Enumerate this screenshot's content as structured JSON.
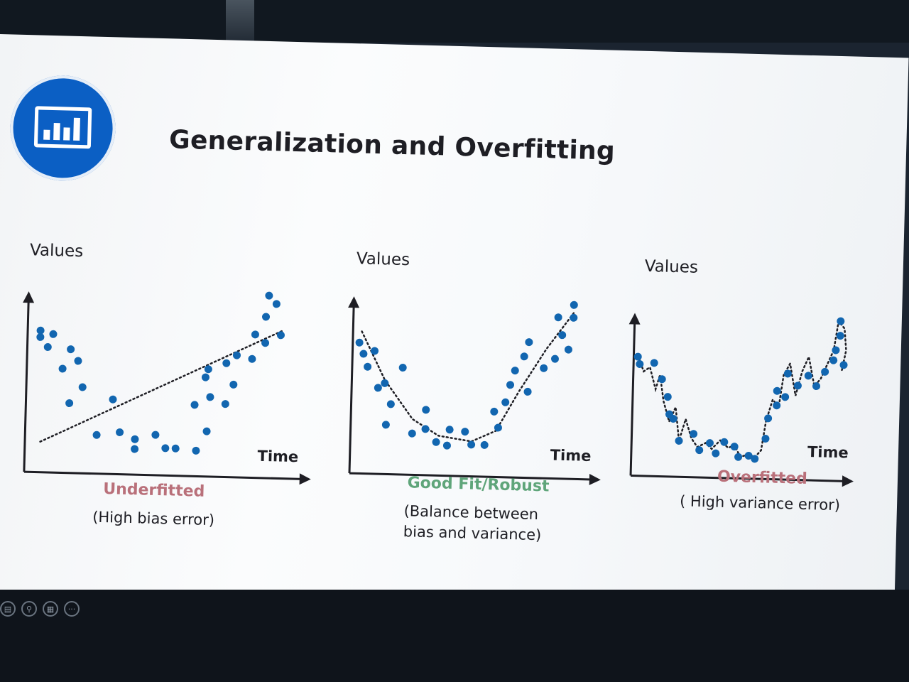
{
  "slide": {
    "title": "Generalization and Overfitting",
    "logo_icon": "bar-chart-icon",
    "accent_color": "#0b5fc4"
  },
  "panels": [
    {
      "ylabel": "Values",
      "xlabel": "Time",
      "status": "Underfitted",
      "status_color": "#b9707a",
      "desc_lines": [
        "(High bias error)"
      ]
    },
    {
      "ylabel": "Values",
      "xlabel": "Time",
      "status": "Good Fit/Robust",
      "status_color": "#5fa57a",
      "desc_lines": [
        "(Balance between",
        "bias and variance)"
      ]
    },
    {
      "ylabel": "Values",
      "xlabel": "Time",
      "status": "Overfitted",
      "status_color": "#b9707a",
      "desc_lines": [
        "( High variance error)"
      ]
    }
  ],
  "chart_data": [
    {
      "type": "scatter",
      "fit": "linear",
      "point_color": "#1266b0",
      "points": [
        [
          0.05,
          0.78
        ],
        [
          0.05,
          0.74
        ],
        [
          0.1,
          0.76
        ],
        [
          0.08,
          0.68
        ],
        [
          0.17,
          0.67
        ],
        [
          0.2,
          0.6
        ],
        [
          0.14,
          0.55
        ],
        [
          0.22,
          0.44
        ],
        [
          0.17,
          0.34
        ],
        [
          0.34,
          0.37
        ],
        [
          0.28,
          0.15
        ],
        [
          0.37,
          0.17
        ],
        [
          0.43,
          0.13
        ],
        [
          0.51,
          0.16
        ],
        [
          0.55,
          0.08
        ],
        [
          0.43,
          0.07
        ],
        [
          0.59,
          0.08
        ],
        [
          0.67,
          0.07
        ],
        [
          0.71,
          0.19
        ],
        [
          0.66,
          0.35
        ],
        [
          0.72,
          0.4
        ],
        [
          0.7,
          0.52
        ],
        [
          0.78,
          0.36
        ],
        [
          0.81,
          0.48
        ],
        [
          0.71,
          0.57
        ],
        [
          0.78,
          0.61
        ],
        [
          0.82,
          0.66
        ],
        [
          0.88,
          0.64
        ],
        [
          0.89,
          0.79
        ],
        [
          0.93,
          0.74
        ],
        [
          0.93,
          0.9
        ],
        [
          0.97,
          0.98
        ],
        [
          0.94,
          1.03
        ],
        [
          0.99,
          0.79
        ]
      ],
      "fit_line": [
        [
          0.06,
          0.1
        ],
        [
          1.0,
          0.82
        ]
      ]
    },
    {
      "type": "scatter",
      "fit": "quadratic",
      "point_color": "#1266b0",
      "points": [
        [
          0.03,
          0.73
        ],
        [
          0.05,
          0.66
        ],
        [
          0.07,
          0.58
        ],
        [
          0.1,
          0.68
        ],
        [
          0.12,
          0.45
        ],
        [
          0.15,
          0.48
        ],
        [
          0.18,
          0.35
        ],
        [
          0.23,
          0.58
        ],
        [
          0.16,
          0.22
        ],
        [
          0.28,
          0.17
        ],
        [
          0.34,
          0.32
        ],
        [
          0.34,
          0.2
        ],
        [
          0.39,
          0.12
        ],
        [
          0.44,
          0.1
        ],
        [
          0.45,
          0.2
        ],
        [
          0.52,
          0.19
        ],
        [
          0.55,
          0.11
        ],
        [
          0.61,
          0.11
        ],
        [
          0.67,
          0.22
        ],
        [
          0.65,
          0.32
        ],
        [
          0.7,
          0.38
        ],
        [
          0.72,
          0.49
        ],
        [
          0.74,
          0.58
        ],
        [
          0.78,
          0.67
        ],
        [
          0.8,
          0.76
        ],
        [
          0.8,
          0.45
        ],
        [
          0.87,
          0.6
        ],
        [
          0.92,
          0.66
        ],
        [
          0.95,
          0.81
        ],
        [
          0.98,
          0.72
        ],
        [
          0.93,
          0.92
        ],
        [
          1.0,
          1.0
        ],
        [
          1.0,
          0.92
        ]
      ],
      "fit_curve": [
        [
          0.04,
          0.8
        ],
        [
          0.15,
          0.5
        ],
        [
          0.28,
          0.26
        ],
        [
          0.4,
          0.16
        ],
        [
          0.55,
          0.13
        ],
        [
          0.66,
          0.2
        ],
        [
          0.76,
          0.45
        ],
        [
          0.88,
          0.72
        ],
        [
          1.0,
          0.95
        ]
      ]
    },
    {
      "type": "scatter",
      "fit": "wiggly",
      "point_color": "#1266b0",
      "points": [
        [
          0.02,
          0.72
        ],
        [
          0.03,
          0.67
        ],
        [
          0.1,
          0.68
        ],
        [
          0.14,
          0.57
        ],
        [
          0.17,
          0.45
        ],
        [
          0.18,
          0.33
        ],
        [
          0.2,
          0.3
        ],
        [
          0.23,
          0.15
        ],
        [
          0.3,
          0.2
        ],
        [
          0.33,
          0.09
        ],
        [
          0.38,
          0.14
        ],
        [
          0.41,
          0.07
        ],
        [
          0.45,
          0.15
        ],
        [
          0.5,
          0.12
        ],
        [
          0.52,
          0.05
        ],
        [
          0.57,
          0.06
        ],
        [
          0.6,
          0.04
        ],
        [
          0.65,
          0.18
        ],
        [
          0.66,
          0.32
        ],
        [
          0.7,
          0.41
        ],
        [
          0.7,
          0.51
        ],
        [
          0.74,
          0.47
        ],
        [
          0.75,
          0.63
        ],
        [
          0.8,
          0.55
        ],
        [
          0.85,
          0.62
        ],
        [
          0.89,
          0.55
        ],
        [
          0.93,
          0.65
        ],
        [
          0.97,
          0.73
        ],
        [
          0.98,
          0.8
        ],
        [
          1.0,
          0.9
        ],
        [
          1.0,
          1.0
        ],
        [
          1.02,
          0.7
        ]
      ],
      "fit_curve": [
        [
          0.02,
          0.73
        ],
        [
          0.05,
          0.62
        ],
        [
          0.08,
          0.65
        ],
        [
          0.11,
          0.5
        ],
        [
          0.13,
          0.6
        ],
        [
          0.15,
          0.42
        ],
        [
          0.18,
          0.28
        ],
        [
          0.21,
          0.38
        ],
        [
          0.23,
          0.15
        ],
        [
          0.26,
          0.3
        ],
        [
          0.29,
          0.17
        ],
        [
          0.32,
          0.11
        ],
        [
          0.36,
          0.14
        ],
        [
          0.39,
          0.1
        ],
        [
          0.43,
          0.16
        ],
        [
          0.47,
          0.11
        ],
        [
          0.5,
          0.13
        ],
        [
          0.53,
          0.05
        ],
        [
          0.57,
          0.07
        ],
        [
          0.6,
          0.05
        ],
        [
          0.63,
          0.1
        ],
        [
          0.65,
          0.3
        ],
        [
          0.68,
          0.45
        ],
        [
          0.71,
          0.4
        ],
        [
          0.73,
          0.62
        ],
        [
          0.76,
          0.7
        ],
        [
          0.79,
          0.48
        ],
        [
          0.82,
          0.65
        ],
        [
          0.85,
          0.75
        ],
        [
          0.88,
          0.55
        ],
        [
          0.91,
          0.6
        ],
        [
          0.94,
          0.7
        ],
        [
          0.97,
          0.8
        ],
        [
          0.99,
          1.0
        ],
        [
          1.02,
          0.95
        ],
        [
          1.03,
          0.8
        ],
        [
          1.01,
          0.65
        ]
      ]
    }
  ],
  "toolbar": {
    "icons": [
      "slides-icon",
      "zoom-icon",
      "grid-icon",
      "more-icon"
    ],
    "more_label": "···"
  }
}
